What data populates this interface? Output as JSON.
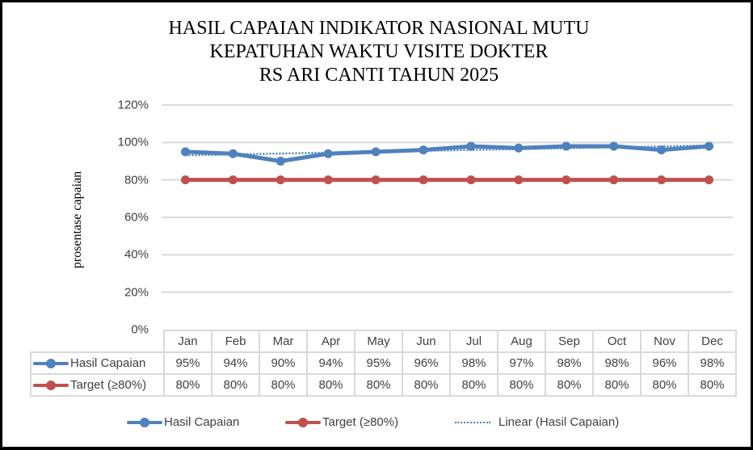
{
  "chart_data": {
    "type": "line",
    "title": "HASIL CAPAIAN INDIKATOR NASIONAL MUTU KEPATUHAN WAKTU VISITE DOKTER RS ARI CANTI TAHUN 2025",
    "title_lines": [
      "HASIL CAPAIAN INDIKATOR NASIONAL MUTU",
      "KEPATUHAN WAKTU VISITE DOKTER",
      "RS ARI CANTI TAHUN 2025"
    ],
    "xlabel": "",
    "ylabel": "prosentase capaian",
    "ylim": [
      0,
      120
    ],
    "yticks": [
      "0%",
      "20%",
      "40%",
      "60%",
      "80%",
      "100%",
      "120%"
    ],
    "grid": true,
    "legend_position": "bottom",
    "categories": [
      "Jan",
      "Feb",
      "Mar",
      "Apr",
      "May",
      "Jun",
      "Jul",
      "Aug",
      "Sep",
      "Oct",
      "Nov",
      "Dec"
    ],
    "series": [
      {
        "name": "Hasil Capaian",
        "color": "#4f81bd",
        "values": [
          95,
          94,
          90,
          94,
          95,
          96,
          98,
          97,
          98,
          98,
          96,
          98
        ],
        "labels": [
          "95%",
          "94%",
          "90%",
          "94%",
          "95%",
          "96%",
          "98%",
          "97%",
          "98%",
          "98%",
          "96%",
          "98%"
        ]
      },
      {
        "name": "Target (≥80%)",
        "color": "#c0504d",
        "values": [
          80,
          80,
          80,
          80,
          80,
          80,
          80,
          80,
          80,
          80,
          80,
          80
        ],
        "labels": [
          "80%",
          "80%",
          "80%",
          "80%",
          "80%",
          "80%",
          "80%",
          "80%",
          "80%",
          "80%",
          "80%",
          "80%"
        ]
      }
    ],
    "trendline": {
      "name": "Linear (Hasil Capaian)",
      "type": "linear",
      "series": "Hasil Capaian",
      "style": "dotted",
      "color": "#4f81bd"
    },
    "data_table": true
  },
  "legend": {
    "hasil": "Hasil Capaian",
    "target": "Target (≥80%)",
    "linear": "Linear (Hasil Capaian)"
  }
}
